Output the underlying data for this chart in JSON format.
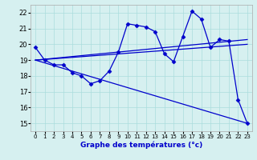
{
  "background_color": "#d6f0f0",
  "grid_color": "#aadddd",
  "line_color": "#0000cc",
  "marker": "D",
  "marker_size": 2.5,
  "xlabel": "Graphe des températures (°c)",
  "xlim": [
    -0.5,
    23.5
  ],
  "ylim": [
    14.5,
    22.5
  ],
  "yticks": [
    15,
    16,
    17,
    18,
    19,
    20,
    21,
    22
  ],
  "xticks": [
    0,
    1,
    2,
    3,
    4,
    5,
    6,
    7,
    8,
    9,
    10,
    11,
    12,
    13,
    14,
    15,
    16,
    17,
    18,
    19,
    20,
    21,
    22,
    23
  ],
  "main_series": [
    19.8,
    19.0,
    18.7,
    18.7,
    18.2,
    18.0,
    17.5,
    17.7,
    18.3,
    19.5,
    21.3,
    21.2,
    21.1,
    20.8,
    19.4,
    18.9,
    20.5,
    22.1,
    21.6,
    19.8,
    20.3,
    20.2,
    16.5,
    15.0
  ],
  "trend_lines": [
    {
      "x": [
        0,
        23
      ],
      "y": [
        19.0,
        15.0
      ]
    },
    {
      "x": [
        0,
        23
      ],
      "y": [
        19.0,
        20.0
      ]
    },
    {
      "x": [
        0,
        23
      ],
      "y": [
        19.0,
        20.3
      ]
    }
  ]
}
